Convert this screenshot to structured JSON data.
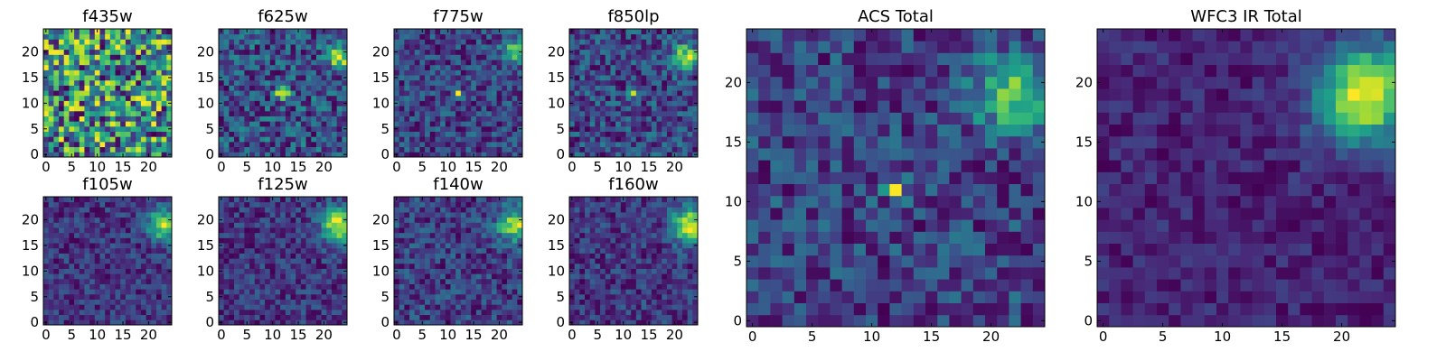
{
  "chart_data": {
    "type": "heatmap",
    "colormap": "viridis",
    "grid_size": 25,
    "panels": [
      {
        "id": "f435w",
        "title": "f435w",
        "xticks": [
          "0",
          "5",
          "10",
          "15",
          "20"
        ],
        "yticks": [
          "0",
          "5",
          "10",
          "15",
          "20"
        ],
        "hotspots": [],
        "noise": 0.3,
        "base": 0.78,
        "seed": 11
      },
      {
        "id": "f625w",
        "title": "f625w",
        "xticks": [
          "0",
          "5",
          "10",
          "15",
          "20"
        ],
        "yticks": [
          "0",
          "5",
          "10",
          "15",
          "20"
        ],
        "hotspots": [
          {
            "x": 12,
            "y": 12,
            "amp": 0.9,
            "sigma": 0.9
          },
          {
            "x": 23,
            "y": 19,
            "amp": 0.7,
            "sigma": 1.6
          }
        ],
        "noise": 0.28,
        "base": 0.45,
        "seed": 23
      },
      {
        "id": "f775w",
        "title": "f775w",
        "xticks": [
          "0",
          "5",
          "10",
          "15",
          "20"
        ],
        "yticks": [
          "0",
          "5",
          "10",
          "15",
          "20"
        ],
        "hotspots": [
          {
            "x": 12,
            "y": 12,
            "amp": 0.9,
            "sigma": 0.6
          },
          {
            "x": 23,
            "y": 20,
            "amp": 0.9,
            "sigma": 1.7
          }
        ],
        "noise": 0.3,
        "base": 0.3,
        "seed": 37
      },
      {
        "id": "f850lp",
        "title": "f850lp",
        "xticks": [
          "0",
          "5",
          "10",
          "15",
          "20"
        ],
        "yticks": [
          "0",
          "5",
          "10",
          "15",
          "20"
        ],
        "hotspots": [
          {
            "x": 12,
            "y": 12,
            "amp": 0.8,
            "sigma": 0.6
          },
          {
            "x": 22,
            "y": 19,
            "amp": 0.9,
            "sigma": 1.7
          }
        ],
        "noise": 0.3,
        "base": 0.32,
        "seed": 41
      },
      {
        "id": "acs-total",
        "title": "ACS Total",
        "xticks": [
          "0",
          "5",
          "10",
          "15",
          "20"
        ],
        "yticks": [
          "0",
          "5",
          "10",
          "15",
          "20"
        ],
        "hotspots": [
          {
            "x": 12,
            "y": 11,
            "amp": 0.9,
            "sigma": 0.6
          },
          {
            "x": 22,
            "y": 19,
            "amp": 0.85,
            "sigma": 2.2
          }
        ],
        "noise": 0.28,
        "base": 0.35,
        "seed": 53
      },
      {
        "id": "f105w",
        "title": "f105w",
        "xticks": [
          "0",
          "5",
          "10",
          "15",
          "20"
        ],
        "yticks": [
          "0",
          "5",
          "10",
          "15",
          "20"
        ],
        "hotspots": [
          {
            "x": 23,
            "y": 19,
            "amp": 0.95,
            "sigma": 2.2
          }
        ],
        "noise": 0.22,
        "base": 0.3,
        "seed": 61
      },
      {
        "id": "f125w",
        "title": "f125w",
        "xticks": [
          "0",
          "5",
          "10",
          "15",
          "20"
        ],
        "yticks": [
          "0",
          "5",
          "10",
          "15",
          "20"
        ],
        "hotspots": [
          {
            "x": 23,
            "y": 19,
            "amp": 1.0,
            "sigma": 2.4
          }
        ],
        "noise": 0.2,
        "base": 0.22,
        "seed": 67
      },
      {
        "id": "f140w",
        "title": "f140w",
        "xticks": [
          "0",
          "5",
          "10",
          "15",
          "20"
        ],
        "yticks": [
          "0",
          "5",
          "10",
          "15",
          "20"
        ],
        "hotspots": [
          {
            "x": 23,
            "y": 19,
            "amp": 0.95,
            "sigma": 2.2
          }
        ],
        "noise": 0.26,
        "base": 0.28,
        "seed": 71
      },
      {
        "id": "f160w",
        "title": "f160w",
        "xticks": [
          "0",
          "5",
          "10",
          "15",
          "20"
        ],
        "yticks": [
          "0",
          "5",
          "10",
          "15",
          "20"
        ],
        "hotspots": [
          {
            "x": 23,
            "y": 19,
            "amp": 1.0,
            "sigma": 2.3
          }
        ],
        "noise": 0.2,
        "base": 0.18,
        "seed": 79
      },
      {
        "id": "wfc3-ir-total",
        "title": "WFC3 IR Total",
        "xticks": [
          "0",
          "5",
          "10",
          "15",
          "20"
        ],
        "yticks": [
          "0",
          "5",
          "10",
          "15",
          "20"
        ],
        "hotspots": [
          {
            "x": 22,
            "y": 19,
            "amp": 1.0,
            "sigma": 2.8
          }
        ],
        "noise": 0.12,
        "base": 0.18,
        "seed": 83
      }
    ]
  }
}
